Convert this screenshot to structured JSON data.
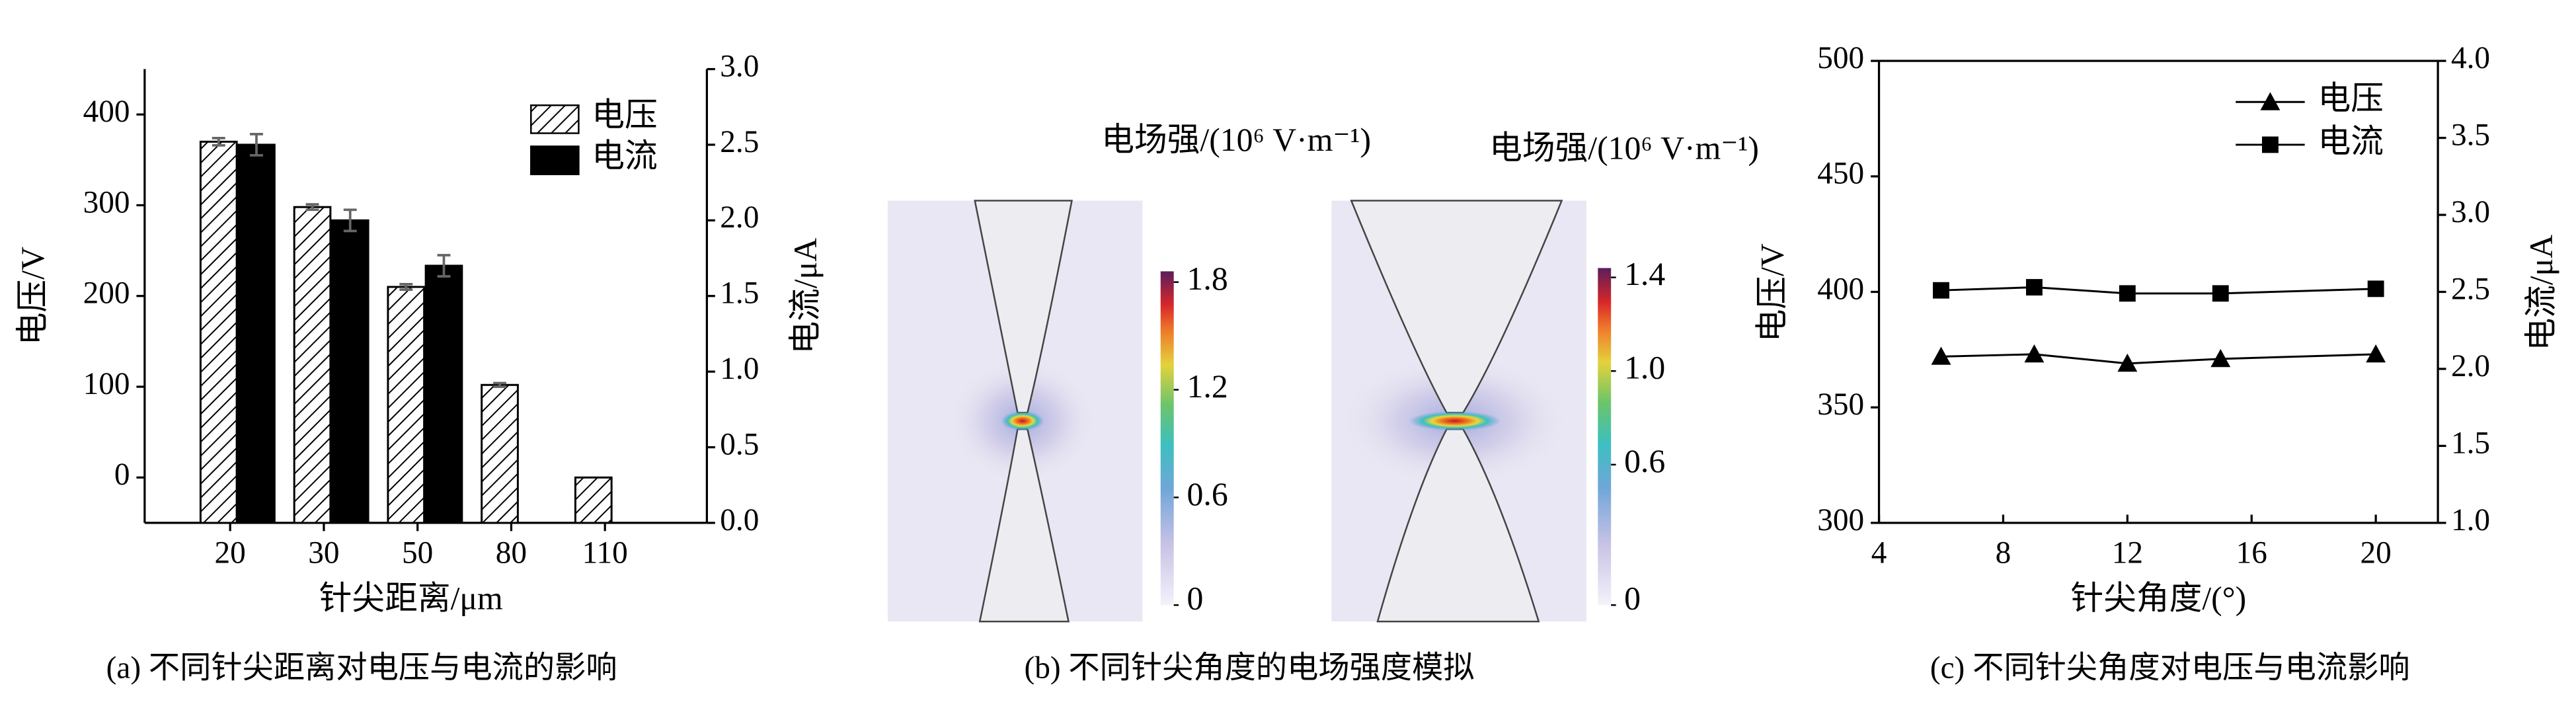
{
  "chart_data": [
    {
      "type": "bar",
      "caption": "(a) 不同针尖距离对电压与电流的影响",
      "xlabel": "针尖距离/μm",
      "ylabel": "电压/V",
      "y2label": "电流/μA",
      "categories": [
        "20",
        "30",
        "50",
        "80",
        "110"
      ],
      "series": [
        {
          "name": "电压",
          "color": "#000000",
          "pattern": "hatch",
          "values": [
            370,
            298,
            210,
            102,
            0
          ],
          "errors": [
            4,
            3,
            3,
            2,
            0
          ]
        },
        {
          "name": "电流",
          "color": "#000000",
          "axis": "y2",
          "values": [
            2.5,
            2.0,
            1.7,
            0,
            0
          ],
          "errors": [
            0.07,
            0.07,
            0.07,
            0,
            0
          ]
        }
      ],
      "ylim": [
        -50,
        450
      ],
      "yticks": [
        0,
        100,
        200,
        300,
        400
      ],
      "y2lim": [
        0,
        3
      ],
      "y2ticks": [
        {
          "value": 0,
          "label": "0.0"
        },
        0.5,
        {
          "value": 1,
          "label": "1.0"
        },
        1.5,
        {
          "value": 2,
          "label": "2.0"
        },
        2.5,
        {
          "value": 3,
          "label": "3.0"
        }
      ],
      "legend": "upper right"
    },
    {
      "type": "image",
      "caption": "(b) 不同针尖角度的电场强度模拟",
      "panels": [
        {
          "title": "电场强/(10⁶ V·m⁻¹)",
          "clim": [
            0,
            1.86
          ],
          "cticks": [
            0,
            0.6,
            1.2,
            1.8
          ]
        },
        {
          "title": "电场强/(10⁶ V·m⁻¹)",
          "clim": [
            0,
            1.44
          ],
          "cticks": [
            0,
            0.6,
            {
              "value": 1,
              "label": "1.0"
            },
            1.4
          ]
        }
      ]
    },
    {
      "type": "line",
      "caption": "(c) 不同针尖角度对电压与电流影响",
      "xlabel": "针尖角度/(°)",
      "ylabel": "电压/V",
      "y2label": "电流/μA",
      "x": [
        6,
        9,
        12,
        15,
        20
      ],
      "series": [
        {
          "name": "电压",
          "color": "#000000",
          "marker": "triangle",
          "values": [
            372,
            373,
            369,
            371,
            373
          ]
        },
        {
          "name": "电流",
          "color": "#000000",
          "marker": "square",
          "axis": "y2",
          "values": [
            2.51,
            2.53,
            2.49,
            2.49,
            2.52
          ]
        }
      ],
      "xlim": [
        4,
        22
      ],
      "xticks": [
        4,
        8,
        12,
        16,
        20
      ],
      "ylim": [
        300,
        500
      ],
      "yticks": [
        300,
        350,
        400,
        450,
        500
      ],
      "y2lim": [
        1,
        4
      ],
      "y2ticks": [
        {
          "value": 1,
          "label": "1.0"
        },
        1.5,
        {
          "value": 2,
          "label": "2.0"
        },
        2.5,
        {
          "value": 3,
          "label": "3.0"
        },
        3.5,
        {
          "value": 4,
          "label": "4.0"
        }
      ],
      "legend": "upper right"
    }
  ]
}
